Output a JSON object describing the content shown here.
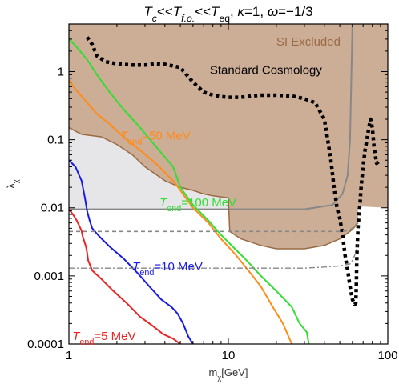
{
  "chart_data": {
    "type": "line",
    "title_parts": [
      {
        "text": "T",
        "style": "italic"
      },
      {
        "text": "c",
        "style": "italic-sub"
      },
      {
        "text": "<<",
        "style": "normal"
      },
      {
        "text": "T",
        "style": "italic"
      },
      {
        "text": "f.o.",
        "style": "italic-sub"
      },
      {
        "text": "<<",
        "style": "normal"
      },
      {
        "text": "T",
        "style": "italic"
      },
      {
        "text": "eq",
        "style": "sub"
      },
      {
        "text": ", ",
        "style": "normal"
      },
      {
        "text": "κ",
        "style": "italic"
      },
      {
        "text": "=1, ",
        "style": "normal"
      },
      {
        "text": "ω",
        "style": "italic"
      },
      {
        "text": "=−1/3",
        "style": "normal"
      }
    ],
    "xlabel_parts": [
      {
        "text": "m",
        "style": "normal"
      },
      {
        "text": "χ",
        "style": "sub"
      },
      {
        "text": "[GeV]",
        "style": "normal"
      }
    ],
    "ylabel_parts": [
      {
        "text": "λ",
        "style": "normal"
      },
      {
        "text": "χ",
        "style": "sub"
      }
    ],
    "x_scale": "log",
    "y_scale": "log",
    "xlim": [
      1,
      100
    ],
    "ylim": [
      0.0001,
      5
    ],
    "x_ticks": [
      {
        "value": 1,
        "label": "1"
      },
      {
        "value": 10,
        "label": "10"
      },
      {
        "value": 100,
        "label": "100"
      }
    ],
    "y_ticks": [
      {
        "value": 1,
        "label": "1"
      },
      {
        "value": 0.1,
        "label": "0.1"
      },
      {
        "value": 0.01,
        "label": "0.01"
      },
      {
        "value": 0.001,
        "label": "0.001"
      },
      {
        "value": 0.0001,
        "label": "0.0001"
      }
    ],
    "regions": [
      {
        "label": "SI Excluded",
        "color": "#ccad96",
        "label_color": "#9b6b45",
        "boundary": [
          [
            1,
            0.15
          ],
          [
            1.2,
            0.12
          ],
          [
            1.6,
            0.11
          ],
          [
            2,
            0.085
          ],
          [
            2.5,
            0.06
          ],
          [
            3,
            0.04
          ],
          [
            4,
            0.025
          ],
          [
            5,
            0.02
          ],
          [
            6,
            0.018
          ],
          [
            7,
            0.016
          ],
          [
            8,
            0.015
          ],
          [
            10,
            0.014
          ],
          [
            10.2,
            0.0045
          ],
          [
            12,
            0.0035
          ],
          [
            16,
            0.0028
          ],
          [
            20,
            0.0025
          ],
          [
            30,
            0.0025
          ],
          [
            40,
            0.0028
          ],
          [
            50,
            0.0035
          ],
          [
            60,
            0.0048
          ],
          [
            65,
            0.006
          ]
        ]
      },
      {
        "label": "Standard Cosmology",
        "color": "#bbbbbb",
        "label_color": "#000000",
        "boundary": [
          [
            1,
            0.0095
          ],
          [
            10,
            0.0095
          ],
          [
            30,
            0.0095
          ],
          [
            45,
            0.011
          ],
          [
            52,
            0.016
          ],
          [
            56,
            0.03
          ],
          [
            58,
            0.1
          ],
          [
            60,
            5
          ]
        ]
      }
    ],
    "series": [
      {
        "name": "T_end=5 MeV",
        "label_main": "T",
        "label_sub": "end",
        "label_rest": "=5 MeV",
        "color": "#ee2222",
        "x": [
          1,
          1.06,
          1.12,
          1.16,
          1.2,
          1.22,
          1.25,
          1.28,
          1.3,
          1.32,
          1.4,
          1.6,
          1.9,
          2.3,
          2.8,
          3.3,
          3.9,
          4.5,
          5
        ],
        "y": [
          0.0095,
          0.008,
          0.0065,
          0.0055,
          0.0046,
          0.0038,
          0.0032,
          0.0027,
          0.0022,
          0.0017,
          0.0012,
          0.0009,
          0.0006,
          0.0004,
          0.00025,
          0.00019,
          0.00014,
          0.00012,
          0.0001
        ]
      },
      {
        "name": "T_end=10 MeV",
        "label_main": "T",
        "label_sub": "end",
        "label_rest": "=10 MeV",
        "color": "#1a1ae6",
        "x": [
          1,
          1.1,
          1.2,
          1.26,
          1.3,
          1.35,
          1.4,
          1.55,
          1.8,
          2.2,
          2.7,
          3.2,
          3.8,
          4.4,
          4.8,
          5.2,
          5.6,
          6
        ],
        "y": [
          0.05,
          0.04,
          0.025,
          0.014,
          0.009,
          0.0065,
          0.005,
          0.0038,
          0.0027,
          0.0018,
          0.0011,
          0.0007,
          0.00045,
          0.00035,
          0.00028,
          0.0002,
          0.00013,
          0.0001
        ]
      },
      {
        "name": "T_end=50 MeV",
        "label_main": "T",
        "label_sub": "end",
        "label_rest": "=50 MeV",
        "color": "#ff8c1a",
        "x": [
          1,
          1.1,
          1.3,
          1.5,
          1.8,
          2.2,
          2.8,
          3.5,
          4.5,
          5,
          6,
          7.5,
          9,
          11,
          13,
          16,
          19,
          22,
          25
        ],
        "y": [
          0.75,
          0.55,
          0.35,
          0.24,
          0.17,
          0.11,
          0.07,
          0.045,
          0.025,
          0.018,
          0.01,
          0.006,
          0.0035,
          0.0021,
          0.0013,
          0.0007,
          0.00035,
          0.0002,
          0.0001
        ]
      },
      {
        "name": "T_end=100 MeV",
        "label_main": "T",
        "label_sub": "end",
        "label_rest": "=100 MeV",
        "color": "#33dd33",
        "x": [
          1,
          1.1,
          1.3,
          1.5,
          1.8,
          2.2,
          2.8,
          3.5,
          4.5,
          5,
          6,
          7.5,
          9,
          11,
          13,
          16,
          20,
          25,
          28,
          31,
          32
        ],
        "y": [
          3,
          2.4,
          1.5,
          0.9,
          0.5,
          0.28,
          0.15,
          0.08,
          0.04,
          0.02,
          0.011,
          0.0065,
          0.004,
          0.0025,
          0.0017,
          0.001,
          0.0006,
          0.00035,
          0.0002,
          0.00015,
          0.0001
        ]
      },
      {
        "name": "dotted",
        "color": "#000000",
        "style": "dotted",
        "x": [
          1.3,
          1.4,
          1.5,
          1.7,
          2,
          2.5,
          3,
          3.5,
          4,
          5,
          6,
          7,
          8,
          9,
          10,
          12,
          14,
          16,
          20,
          25,
          30,
          35,
          40,
          42,
          44,
          46,
          48,
          50,
          52,
          54,
          56,
          58,
          60,
          62,
          63,
          63.5,
          64,
          65,
          66,
          67,
          68,
          70,
          72,
          74,
          76,
          78,
          80,
          82,
          85,
          90
        ],
        "y": [
          3.2,
          2.5,
          1.7,
          1.4,
          1.3,
          1.25,
          1.25,
          1.3,
          1.28,
          1.15,
          0.7,
          0.5,
          0.45,
          0.43,
          0.42,
          0.42,
          0.44,
          0.45,
          0.45,
          0.44,
          0.4,
          0.35,
          0.2,
          0.1,
          0.05,
          0.02,
          0.01,
          0.007,
          0.004,
          0.002,
          0.0012,
          0.0007,
          0.00045,
          0.00038,
          0.0004,
          0.0008,
          0.002,
          0.005,
          0.008,
          0.012,
          0.02,
          0.04,
          0.07,
          0.1,
          0.15,
          0.2,
          0.15,
          0.08,
          0.045,
          0.05
        ]
      },
      {
        "name": "dashed",
        "color": "#888888",
        "style": "dashed",
        "x": [
          1,
          10,
          20,
          30,
          40,
          50,
          55,
          58,
          60,
          62,
          65
        ],
        "y": [
          0.0045,
          0.0045,
          0.0045,
          0.0045,
          0.0045,
          0.0045,
          0.0046,
          0.0048,
          0.005,
          0.0055,
          0.006
        ]
      },
      {
        "name": "dashdot",
        "color": "#888888",
        "style": "dashdot",
        "x": [
          1,
          5,
          10,
          20,
          30,
          40,
          50,
          58,
          60,
          62,
          65
        ],
        "y": [
          0.0013,
          0.0013,
          0.0013,
          0.0013,
          0.0013,
          0.00135,
          0.0014,
          0.0015,
          0.0017,
          0.002,
          0.0028
        ]
      }
    ],
    "annotations": [
      {
        "text": "Standard Cosmology",
        "x": 31,
        "y": 0.95,
        "color": "#000000"
      }
    ]
  }
}
